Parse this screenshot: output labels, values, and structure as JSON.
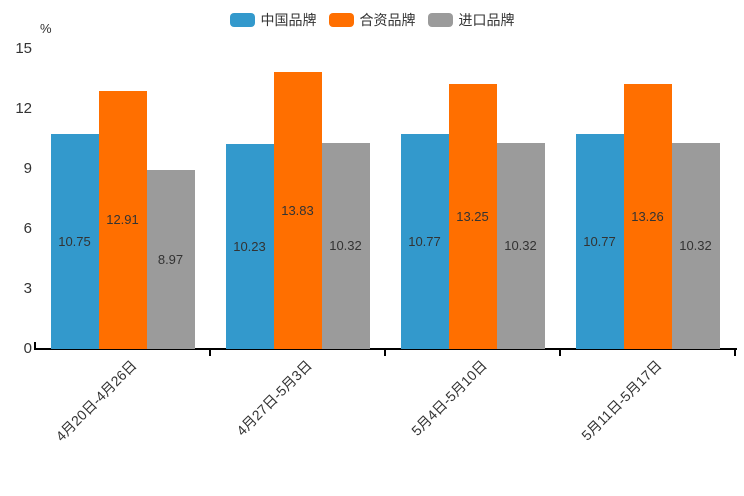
{
  "chart_data": {
    "type": "bar",
    "title": "",
    "categories": [
      "4月20日-4月26日",
      "4月27日-5月3日",
      "5月4日-5月10日",
      "5月11日-5月17日"
    ],
    "series": [
      {
        "name": "中国品牌",
        "color": "#3399cc",
        "values": [
          10.75,
          10.23,
          10.77,
          10.77
        ]
      },
      {
        "name": "合资品牌",
        "color": "#ff6f00",
        "values": [
          12.91,
          13.83,
          13.25,
          13.26
        ]
      },
      {
        "name": "进口品牌",
        "color": "#9b9b9b",
        "values": [
          8.97,
          10.32,
          10.32,
          10.32
        ]
      }
    ],
    "xlabel": "",
    "ylabel": "%",
    "ylim": [
      0,
      15
    ],
    "yticks": [
      0,
      3,
      6,
      9,
      12,
      15
    ],
    "grid": false,
    "legend_position": "top-center",
    "value_labels": "inside-center",
    "value_label_decimals": 2
  },
  "colors": {
    "axis": "#000000",
    "text": "#333333",
    "background": "#ffffff"
  }
}
